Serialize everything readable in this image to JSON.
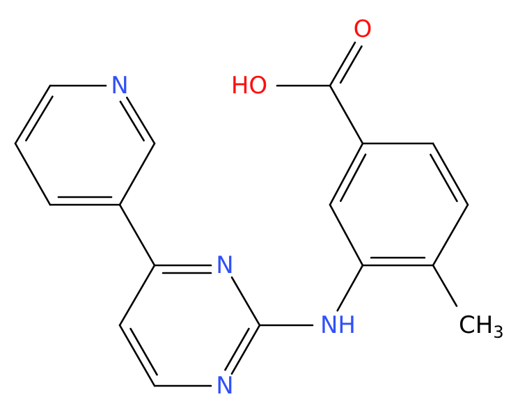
{
  "atoms": {
    "carbonyl_oxygen": "O",
    "hydroxyl": "HO",
    "pyridine_nitrogen": "N",
    "pyrimidine_nitrogen_3": "N",
    "pyrimidine_nitrogen_1": "N",
    "amine": "NH",
    "methyl": {
      "label": "CH",
      "subscript": "3"
    }
  }
}
